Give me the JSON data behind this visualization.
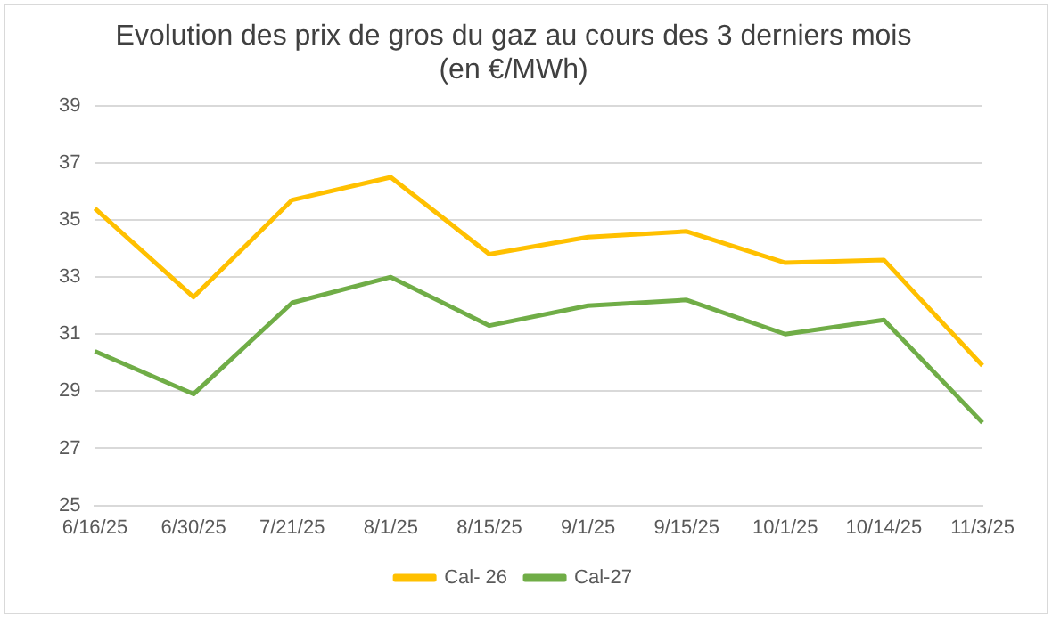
{
  "chart_data": {
    "type": "line",
    "title": [
      "Evolution des prix de gros du gaz au cours des 3 derniers mois",
      "(en €/MWh)"
    ],
    "categories": [
      "6/16/25",
      "6/30/25",
      "7/21/25",
      "8/1/25",
      "8/15/25",
      "9/1/25",
      "9/15/25",
      "10/1/25",
      "10/14/25",
      "11/3/25"
    ],
    "series": [
      {
        "name": "Cal- 26",
        "color": "#ffc000",
        "values": [
          35.4,
          32.3,
          35.7,
          36.5,
          33.8,
          34.4,
          34.6,
          33.5,
          33.6,
          29.9
        ]
      },
      {
        "name": "Cal-27",
        "color": "#70ad47",
        "values": [
          30.4,
          28.9,
          32.1,
          33.0,
          31.3,
          32.0,
          32.2,
          31.0,
          31.5,
          27.9
        ]
      }
    ],
    "ylim": [
      25,
      39
    ],
    "yticks": [
      25,
      27,
      29,
      31,
      33,
      35,
      37,
      39
    ],
    "grid": "y",
    "legend": "bottom",
    "marker": "none",
    "line_style": "solid"
  }
}
